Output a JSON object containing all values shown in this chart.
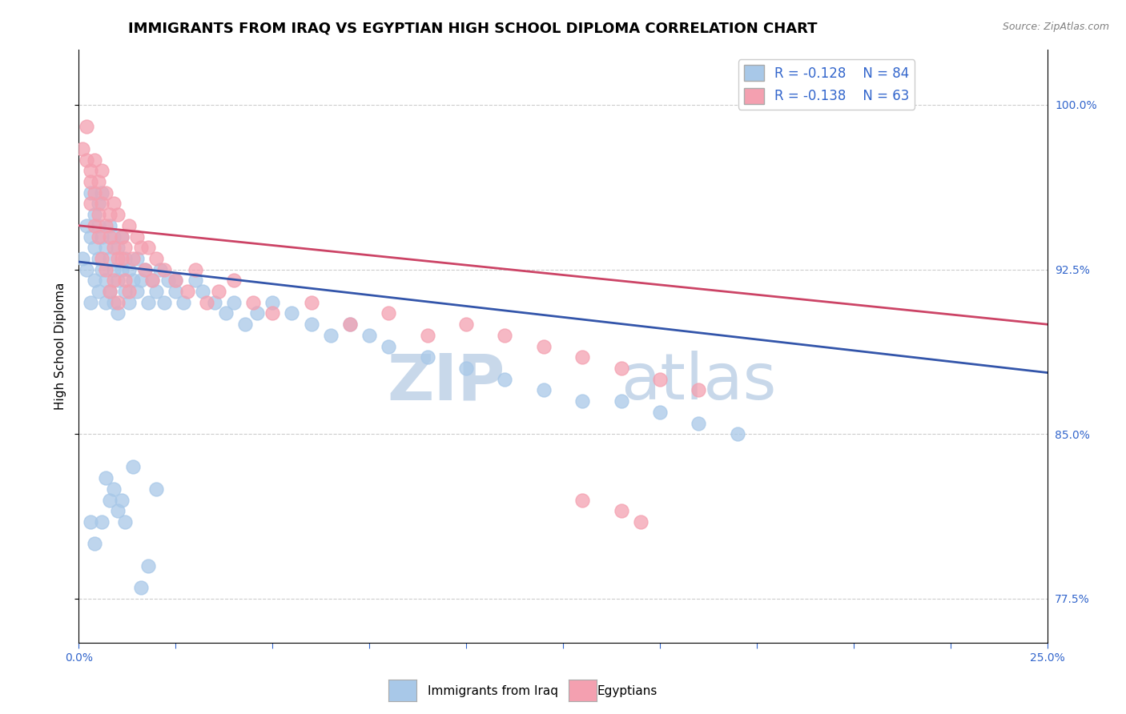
{
  "title": "IMMIGRANTS FROM IRAQ VS EGYPTIAN HIGH SCHOOL DIPLOMA CORRELATION CHART",
  "source": "Source: ZipAtlas.com",
  "ylabel": "High School Diploma",
  "xmin": 0.0,
  "xmax": 0.25,
  "ymin": 0.755,
  "ymax": 1.025,
  "yticks": [
    0.775,
    0.85,
    0.925,
    1.0
  ],
  "ytick_labels": [
    "77.5%",
    "85.0%",
    "92.5%",
    "100.0%"
  ],
  "xticks": [
    0.0,
    0.025,
    0.05,
    0.075,
    0.1,
    0.125,
    0.15,
    0.175,
    0.2,
    0.225,
    0.25
  ],
  "legend_label1": "Immigrants from Iraq",
  "legend_label2": "Egyptians",
  "R1": -0.128,
  "N1": 84,
  "R2": -0.138,
  "N2": 63,
  "color_iraq": "#a8c8e8",
  "color_egypt": "#f4a0b0",
  "color_trendline_iraq": "#3355aa",
  "color_trendline_egypt": "#cc4466",
  "iraq_x": [
    0.001,
    0.002,
    0.002,
    0.003,
    0.003,
    0.003,
    0.004,
    0.004,
    0.004,
    0.005,
    0.005,
    0.005,
    0.005,
    0.006,
    0.006,
    0.006,
    0.007,
    0.007,
    0.007,
    0.008,
    0.008,
    0.008,
    0.009,
    0.009,
    0.009,
    0.01,
    0.01,
    0.01,
    0.011,
    0.011,
    0.012,
    0.012,
    0.013,
    0.013,
    0.014,
    0.015,
    0.015,
    0.016,
    0.017,
    0.018,
    0.019,
    0.02,
    0.021,
    0.022,
    0.023,
    0.025,
    0.027,
    0.03,
    0.032,
    0.035,
    0.038,
    0.04,
    0.043,
    0.046,
    0.05,
    0.055,
    0.06,
    0.065,
    0.07,
    0.075,
    0.08,
    0.09,
    0.1,
    0.11,
    0.12,
    0.13,
    0.14,
    0.15,
    0.16,
    0.17,
    0.003,
    0.004,
    0.006,
    0.008,
    0.01,
    0.012,
    0.007,
    0.009,
    0.011,
    0.014,
    0.016,
    0.018,
    0.02,
    0.025
  ],
  "iraq_y": [
    0.93,
    0.945,
    0.925,
    0.96,
    0.94,
    0.91,
    0.95,
    0.935,
    0.92,
    0.955,
    0.945,
    0.93,
    0.915,
    0.94,
    0.925,
    0.96,
    0.935,
    0.92,
    0.91,
    0.93,
    0.945,
    0.915,
    0.94,
    0.925,
    0.91,
    0.935,
    0.92,
    0.905,
    0.94,
    0.925,
    0.93,
    0.915,
    0.925,
    0.91,
    0.92,
    0.93,
    0.915,
    0.92,
    0.925,
    0.91,
    0.92,
    0.915,
    0.925,
    0.91,
    0.92,
    0.915,
    0.91,
    0.92,
    0.915,
    0.91,
    0.905,
    0.91,
    0.9,
    0.905,
    0.91,
    0.905,
    0.9,
    0.895,
    0.9,
    0.895,
    0.89,
    0.885,
    0.88,
    0.875,
    0.87,
    0.865,
    0.865,
    0.86,
    0.855,
    0.85,
    0.81,
    0.8,
    0.81,
    0.82,
    0.815,
    0.81,
    0.83,
    0.825,
    0.82,
    0.835,
    0.78,
    0.79,
    0.825,
    0.92
  ],
  "egypt_x": [
    0.001,
    0.002,
    0.002,
    0.003,
    0.003,
    0.004,
    0.004,
    0.005,
    0.005,
    0.006,
    0.006,
    0.007,
    0.007,
    0.008,
    0.008,
    0.009,
    0.009,
    0.01,
    0.01,
    0.011,
    0.012,
    0.013,
    0.014,
    0.015,
    0.016,
    0.017,
    0.018,
    0.019,
    0.02,
    0.022,
    0.025,
    0.028,
    0.03,
    0.033,
    0.036,
    0.04,
    0.045,
    0.05,
    0.06,
    0.07,
    0.08,
    0.09,
    0.1,
    0.11,
    0.12,
    0.13,
    0.14,
    0.15,
    0.16,
    0.003,
    0.004,
    0.005,
    0.006,
    0.007,
    0.008,
    0.009,
    0.01,
    0.011,
    0.012,
    0.013,
    0.13,
    0.14,
    0.145
  ],
  "egypt_y": [
    0.98,
    0.975,
    0.99,
    0.965,
    0.97,
    0.96,
    0.975,
    0.965,
    0.95,
    0.97,
    0.955,
    0.96,
    0.945,
    0.95,
    0.94,
    0.955,
    0.935,
    0.95,
    0.93,
    0.94,
    0.935,
    0.945,
    0.93,
    0.94,
    0.935,
    0.925,
    0.935,
    0.92,
    0.93,
    0.925,
    0.92,
    0.915,
    0.925,
    0.91,
    0.915,
    0.92,
    0.91,
    0.905,
    0.91,
    0.9,
    0.905,
    0.895,
    0.9,
    0.895,
    0.89,
    0.885,
    0.88,
    0.875,
    0.87,
    0.955,
    0.945,
    0.94,
    0.93,
    0.925,
    0.915,
    0.92,
    0.91,
    0.93,
    0.92,
    0.915,
    0.82,
    0.815,
    0.81
  ],
  "trendline_iraq_y0": 0.9285,
  "trendline_iraq_y1": 0.878,
  "trendline_egypt_y0": 0.945,
  "trendline_egypt_y1": 0.9,
  "background_color": "#ffffff",
  "grid_color": "#cccccc",
  "watermark_text": "ZIP",
  "watermark_text2": "atlas",
  "watermark_color": "#c8d8ea",
  "title_fontsize": 13,
  "axis_label_fontsize": 11,
  "tick_fontsize": 10,
  "legend_fontsize": 12
}
